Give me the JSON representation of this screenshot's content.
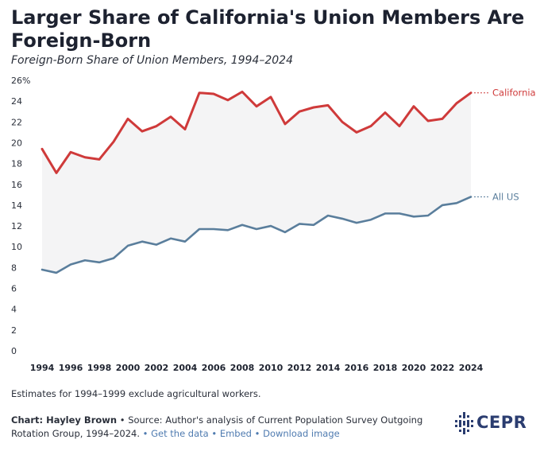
{
  "title": "Larger Share of California's Union Members Are Foreign-Born",
  "subtitle": "Foreign-Born Share of Union Members, 1994–2024",
  "note": "Estimates for 1994–1999 exclude agricultural workers.",
  "source": {
    "chart_by": "Chart: Hayley Brown",
    "bullet": "•",
    "text": "Source: Author's analysis of Current Population Survey Outgoing Rotation Group, 1994–2024.",
    "links": [
      "Get the data",
      "Embed",
      "Download image"
    ]
  },
  "logo": {
    "text": "CEPR",
    "name": "cepr-logo-icon"
  },
  "colors": {
    "california": "#cf3a3a",
    "all_us": "#5a7e9c",
    "band": "#f4f4f5",
    "text": "#1e2330",
    "grid_label": "#2a2f3a"
  },
  "chart_data": {
    "type": "line",
    "title": "Foreign-Born Share of Union Members, 1994–2024",
    "xlabel": "",
    "ylabel": "",
    "xlim": [
      1994,
      2024
    ],
    "ylim": [
      0,
      26
    ],
    "y_ticks": [
      "0",
      "2",
      "4",
      "6",
      "8",
      "10",
      "12",
      "14",
      "16",
      "18",
      "20",
      "22",
      "24",
      "26%"
    ],
    "x_ticks": [
      "1994",
      "1996",
      "1998",
      "2000",
      "2002",
      "2004",
      "2006",
      "2008",
      "2010",
      "2012",
      "2014",
      "2016",
      "2018",
      "2020",
      "2022",
      "2024"
    ],
    "grid": false,
    "x": [
      1994,
      1995,
      1996,
      1997,
      1998,
      1999,
      2000,
      2001,
      2002,
      2003,
      2004,
      2005,
      2006,
      2007,
      2008,
      2009,
      2010,
      2011,
      2012,
      2013,
      2014,
      2015,
      2016,
      2017,
      2018,
      2019,
      2020,
      2021,
      2022,
      2023,
      2024
    ],
    "series": [
      {
        "name": "California",
        "values": [
          19.4,
          17.1,
          19.1,
          18.6,
          18.4,
          20.1,
          22.3,
          21.1,
          21.6,
          22.5,
          21.3,
          24.8,
          24.7,
          24.1,
          24.9,
          23.5,
          24.4,
          21.8,
          23.0,
          23.4,
          23.6,
          22.0,
          21.0,
          21.6,
          22.9,
          21.6,
          23.5,
          22.1,
          22.3,
          23.8,
          24.8
        ]
      },
      {
        "name": "All US",
        "values": [
          7.8,
          7.5,
          8.3,
          8.7,
          8.5,
          8.9,
          10.1,
          10.5,
          10.2,
          10.8,
          10.5,
          11.7,
          11.7,
          11.6,
          12.1,
          11.7,
          12.0,
          11.4,
          12.2,
          12.1,
          13.0,
          12.7,
          12.3,
          12.6,
          13.2,
          13.2,
          12.9,
          13.0,
          14.0,
          14.2,
          14.8
        ]
      }
    ]
  }
}
